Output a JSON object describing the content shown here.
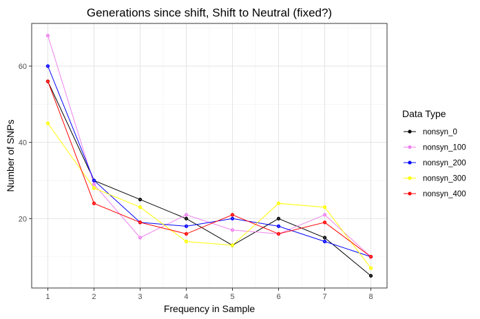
{
  "chart_data": {
    "type": "line",
    "title": "Generations since shift, Shift to Neutral (fixed?)",
    "xlabel": "Frequency in Sample",
    "ylabel": "Number of SNPs",
    "x": [
      1,
      2,
      3,
      4,
      5,
      6,
      7,
      8
    ],
    "x_ticks": [
      "1",
      "2",
      "3",
      "4",
      "5",
      "6",
      "7",
      "8"
    ],
    "y_ticks": [
      "20",
      "40",
      "60"
    ],
    "xlim": [
      0.65,
      8.35
    ],
    "ylim": [
      1.8,
      71.2
    ],
    "grid": true,
    "legend_title": "Data Type",
    "legend_position": "right",
    "series": [
      {
        "name": "nonsyn_0",
        "color": "#000000",
        "values": [
          56,
          30,
          25,
          20,
          13,
          20,
          15,
          5
        ]
      },
      {
        "name": "nonsyn_100",
        "color": "#ee82ee",
        "values": [
          68,
          29,
          15,
          21,
          17,
          16,
          21,
          10
        ]
      },
      {
        "name": "nonsyn_200",
        "color": "#0000ff",
        "values": [
          60,
          30,
          19,
          18,
          20,
          18,
          14,
          10
        ]
      },
      {
        "name": "nonsyn_300",
        "color": "#ffff00",
        "values": [
          45,
          28,
          23,
          14,
          13,
          24,
          23,
          7
        ]
      },
      {
        "name": "nonsyn_400",
        "color": "#ff0000",
        "values": [
          56,
          24,
          19,
          16,
          21,
          16,
          19,
          10
        ]
      }
    ]
  }
}
